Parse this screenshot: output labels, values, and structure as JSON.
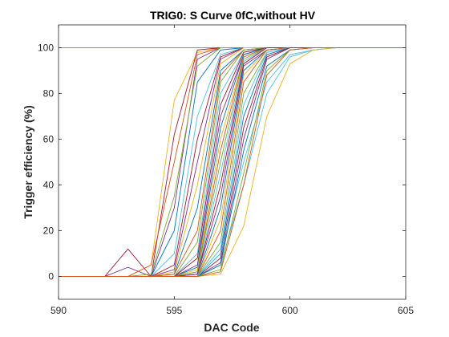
{
  "chart_data": {
    "type": "line",
    "title": "TRIG0: S Curve 0fC,without HV",
    "xlabel": "DAC Code",
    "ylabel": "Trigger efficiency (%)",
    "xlim": [
      590,
      605
    ],
    "ylim": [
      -10,
      110
    ],
    "xticks": [
      "590",
      "595",
      "600",
      "605"
    ],
    "yticks": [
      "0",
      "20",
      "40",
      "60",
      "80",
      "100"
    ],
    "grid": false,
    "legend": "none",
    "palette": [
      "#0072BD",
      "#D95319",
      "#EDB120",
      "#7E2F8E",
      "#77AC30",
      "#4DBEEE",
      "#A2142F"
    ],
    "x": [
      590,
      591,
      592,
      593,
      594,
      595,
      596,
      597,
      598,
      599,
      600,
      601,
      602,
      603,
      604,
      605
    ],
    "series": [
      {
        "color": "#77AC30",
        "values": [
          100,
          100,
          100,
          100,
          100,
          100,
          100,
          100,
          100,
          100,
          100,
          100,
          100,
          100,
          100,
          100
        ]
      },
      {
        "color": "#EDB120",
        "values": [
          0,
          0,
          0,
          0,
          5,
          77,
          98,
          100,
          100,
          100,
          100,
          100,
          100,
          100,
          100,
          100
        ]
      },
      {
        "color": "#A2142F",
        "values": [
          0,
          0,
          0,
          12,
          0,
          62,
          99,
          100,
          100,
          100,
          100,
          100,
          100,
          100,
          100,
          100
        ]
      },
      {
        "color": "#7E2F8E",
        "values": [
          0,
          0,
          0,
          4,
          0,
          30,
          95,
          100,
          100,
          100,
          100,
          100,
          100,
          100,
          100,
          100
        ]
      },
      {
        "color": "#D95319",
        "values": [
          0,
          0,
          0,
          0,
          5,
          50,
          97,
          100,
          100,
          100,
          100,
          100,
          100,
          100,
          100,
          100
        ]
      },
      {
        "color": "#77AC30",
        "values": [
          0,
          0,
          0,
          0,
          1,
          35,
          92,
          100,
          100,
          100,
          100,
          100,
          100,
          100,
          100,
          100
        ]
      },
      {
        "color": "#0072BD",
        "values": [
          0,
          0,
          0,
          0,
          0,
          20,
          85,
          99,
          100,
          100,
          100,
          100,
          100,
          100,
          100,
          100
        ]
      },
      {
        "color": "#4DBEEE",
        "values": [
          0,
          0,
          0,
          0,
          0,
          10,
          70,
          97,
          100,
          100,
          100,
          100,
          100,
          100,
          100,
          100
        ]
      },
      {
        "color": "#A2142F",
        "values": [
          0,
          0,
          0,
          0,
          0,
          5,
          60,
          96,
          100,
          100,
          100,
          100,
          100,
          100,
          100,
          100
        ]
      },
      {
        "color": "#7E2F8E",
        "values": [
          0,
          0,
          0,
          0,
          0,
          3,
          50,
          95,
          100,
          100,
          100,
          100,
          100,
          100,
          100,
          100
        ]
      },
      {
        "color": "#EDB120",
        "values": [
          0,
          0,
          0,
          0,
          0,
          2,
          40,
          93,
          100,
          100,
          100,
          100,
          100,
          100,
          100,
          100
        ]
      },
      {
        "color": "#0072BD",
        "values": [
          0,
          0,
          0,
          0,
          0,
          1,
          30,
          90,
          99,
          100,
          100,
          100,
          100,
          100,
          100,
          100
        ]
      },
      {
        "color": "#D95319",
        "values": [
          0,
          0,
          0,
          0,
          0,
          1,
          20,
          88,
          99,
          100,
          100,
          100,
          100,
          100,
          100,
          100
        ]
      },
      {
        "color": "#77AC30",
        "values": [
          0,
          0,
          0,
          0,
          0,
          0,
          15,
          85,
          99,
          100,
          100,
          100,
          100,
          100,
          100,
          100
        ]
      },
      {
        "color": "#4DBEEE",
        "values": [
          0,
          0,
          0,
          0,
          0,
          0,
          10,
          80,
          98,
          100,
          100,
          100,
          100,
          100,
          100,
          100
        ]
      },
      {
        "color": "#A2142F",
        "values": [
          0,
          0,
          0,
          0,
          0,
          0,
          8,
          75,
          98,
          100,
          100,
          100,
          100,
          100,
          100,
          100
        ]
      },
      {
        "color": "#7E2F8E",
        "values": [
          0,
          0,
          0,
          0,
          0,
          0,
          5,
          70,
          97,
          100,
          100,
          100,
          100,
          100,
          100,
          100
        ]
      },
      {
        "color": "#0072BD",
        "values": [
          0,
          0,
          0,
          0,
          0,
          0,
          4,
          65,
          97,
          100,
          100,
          100,
          100,
          100,
          100,
          100
        ]
      },
      {
        "color": "#EDB120",
        "values": [
          0,
          0,
          0,
          0,
          0,
          0,
          3,
          60,
          96,
          100,
          100,
          100,
          100,
          100,
          100,
          100
        ]
      },
      {
        "color": "#D95319",
        "values": [
          0,
          0,
          0,
          0,
          0,
          0,
          2,
          55,
          96,
          100,
          100,
          100,
          100,
          100,
          100,
          100
        ]
      },
      {
        "color": "#77AC30",
        "values": [
          0,
          0,
          0,
          0,
          0,
          0,
          2,
          50,
          95,
          100,
          100,
          100,
          100,
          100,
          100,
          100
        ]
      },
      {
        "color": "#4DBEEE",
        "values": [
          0,
          0,
          0,
          0,
          0,
          0,
          1,
          45,
          94,
          100,
          100,
          100,
          100,
          100,
          100,
          100
        ]
      },
      {
        "color": "#A2142F",
        "values": [
          0,
          0,
          0,
          0,
          0,
          0,
          1,
          40,
          93,
          100,
          100,
          100,
          100,
          100,
          100,
          100
        ]
      },
      {
        "color": "#7E2F8E",
        "values": [
          0,
          0,
          0,
          0,
          0,
          0,
          1,
          35,
          92,
          99,
          100,
          100,
          100,
          100,
          100,
          100
        ]
      },
      {
        "color": "#0072BD",
        "values": [
          0,
          0,
          0,
          0,
          0,
          0,
          0,
          30,
          90,
          99,
          100,
          100,
          100,
          100,
          100,
          100
        ]
      },
      {
        "color": "#EDB120",
        "values": [
          0,
          0,
          0,
          0,
          0,
          0,
          0,
          25,
          88,
          99,
          100,
          100,
          100,
          100,
          100,
          100
        ]
      },
      {
        "color": "#D95319",
        "values": [
          0,
          0,
          0,
          0,
          0,
          0,
          0,
          20,
          85,
          99,
          100,
          100,
          100,
          100,
          100,
          100
        ]
      },
      {
        "color": "#77AC30",
        "values": [
          0,
          0,
          0,
          0,
          0,
          0,
          0,
          15,
          80,
          98,
          100,
          100,
          100,
          100,
          100,
          100
        ]
      },
      {
        "color": "#4DBEEE",
        "values": [
          0,
          0,
          0,
          0,
          0,
          0,
          0,
          12,
          75,
          98,
          100,
          100,
          100,
          100,
          100,
          100
        ]
      },
      {
        "color": "#0072BD",
        "values": [
          0,
          0,
          0,
          0,
          0,
          0,
          0,
          10,
          70,
          97,
          100,
          100,
          100,
          100,
          100,
          100
        ]
      },
      {
        "color": "#A2142F",
        "values": [
          0,
          0,
          0,
          0,
          0,
          0,
          0,
          8,
          65,
          96,
          100,
          100,
          100,
          100,
          100,
          100
        ]
      },
      {
        "color": "#7E2F8E",
        "values": [
          0,
          0,
          0,
          0,
          0,
          0,
          0,
          6,
          60,
          95,
          100,
          100,
          100,
          100,
          100,
          100
        ]
      },
      {
        "color": "#4DBEEE",
        "values": [
          0,
          0,
          0,
          0,
          0,
          0,
          0,
          10,
          50,
          85,
          97,
          99,
          100,
          100,
          100,
          100
        ]
      },
      {
        "color": "#4DBEEE",
        "values": [
          0,
          0,
          0,
          0,
          0,
          0,
          0,
          5,
          40,
          80,
          96,
          99,
          100,
          100,
          100,
          100
        ]
      },
      {
        "color": "#0072BD",
        "values": [
          0,
          0,
          0,
          0,
          0,
          0,
          0,
          5,
          55,
          92,
          99,
          100,
          100,
          100,
          100,
          100
        ]
      },
      {
        "color": "#EDB120",
        "values": [
          0,
          0,
          0,
          0,
          0,
          0,
          0,
          1,
          22,
          70,
          93,
          99,
          100,
          100,
          100,
          100
        ]
      },
      {
        "color": "#77AC30",
        "values": [
          0,
          0,
          0,
          0,
          0,
          0,
          0,
          3,
          45,
          90,
          99,
          100,
          100,
          100,
          100,
          100
        ]
      },
      {
        "color": "#D95319",
        "values": [
          0,
          0,
          0,
          0,
          0,
          0,
          0,
          2,
          40,
          88,
          99,
          100,
          100,
          100,
          100,
          100
        ]
      }
    ]
  }
}
